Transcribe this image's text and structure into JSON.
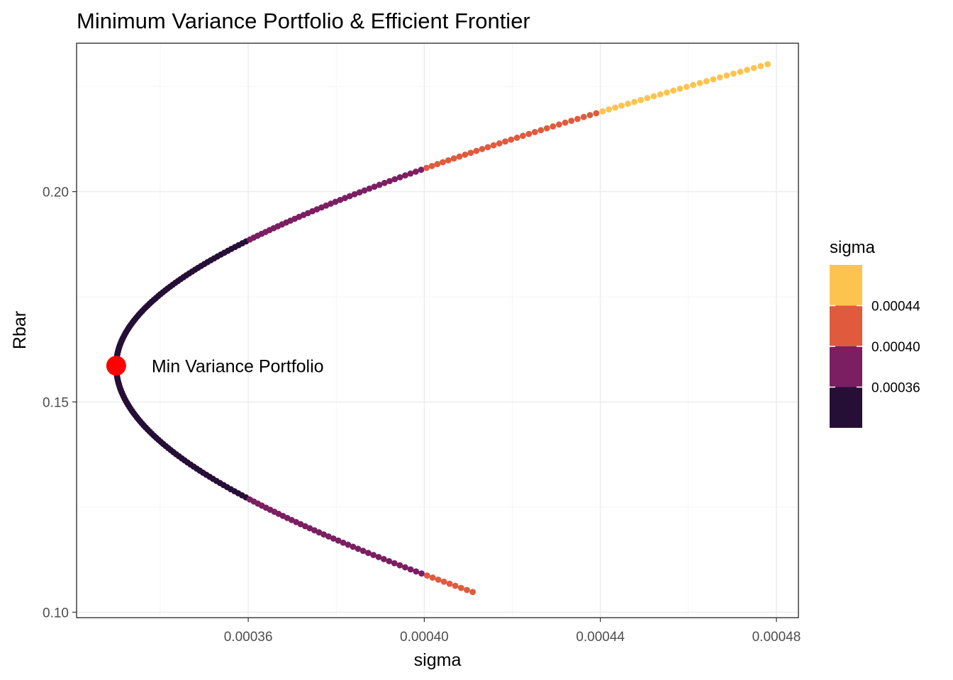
{
  "chart_data": {
    "type": "scatter",
    "title": "Minimum Variance Portfolio & Efficient Frontier",
    "xlabel": "sigma",
    "ylabel": "Rbar",
    "xlim": [
      0.000321,
      0.000485
    ],
    "ylim": [
      0.0987,
      0.2353
    ],
    "x_ticks": [
      0.00036,
      0.0004,
      0.00044,
      0.00048
    ],
    "x_tick_labels": [
      "0.00036",
      "0.00040",
      "0.00044",
      "0.00048"
    ],
    "y_ticks": [
      0.1,
      0.15,
      0.2
    ],
    "y_tick_labels": [
      "0.10",
      "0.15",
      "0.20"
    ],
    "grid": true,
    "frontier": {
      "min_variance_x": 0.00033,
      "min_variance_y": 0.1586,
      "upper_end": [
        0.000478,
        0.2303
      ],
      "lower_end": [
        0.000411,
        0.1048
      ],
      "point_count_upper": 160,
      "point_count_lower": 110
    },
    "legend": {
      "title": "sigma",
      "position": "right",
      "bins": [
        {
          "color": "#fcc44f",
          "label": ""
        },
        {
          "color": "#e05a3d",
          "label": "0.00044"
        },
        {
          "color": "#7b1e62",
          "label": "0.00040"
        },
        {
          "color": "#260f37",
          "label": "0.00036"
        }
      ],
      "breaks": [
        0.00036,
        0.0004,
        0.00044
      ]
    },
    "highlight": {
      "label": "Min Variance Portfolio",
      "x": 0.00033,
      "y": 0.1586,
      "color": "#ff0000"
    }
  }
}
